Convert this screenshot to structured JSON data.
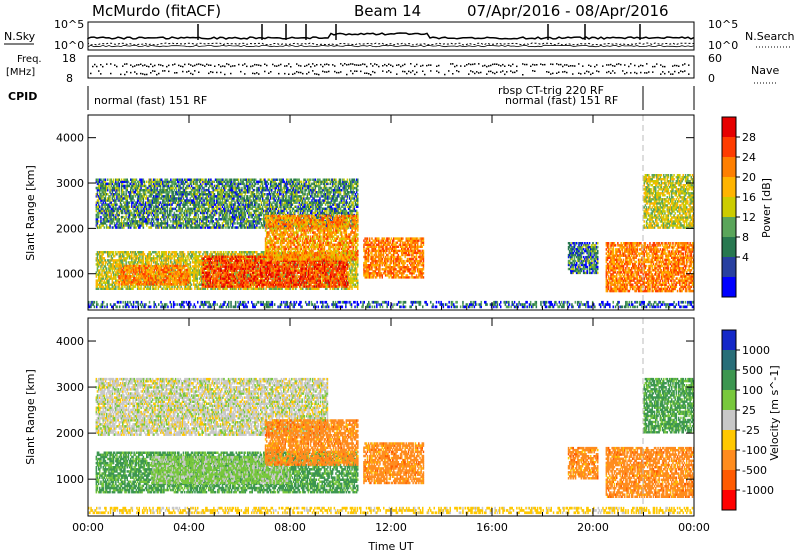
{
  "header": {
    "station": "McMurdo (fitACF)",
    "beam": "Beam 14",
    "dates": "07/Apr/2016 - 08/Apr/2016"
  },
  "top_panels": {
    "nsky_label": "N.Sky",
    "nsearch_label": "N.Search",
    "freq_label_top": "Freq.",
    "freq_label_units": "[MHz]",
    "nave_label": "Nave",
    "cpid_label": "CPID",
    "nsky_ticks": [
      "10^5",
      "10^0"
    ],
    "nsearch_ticks": [
      "10^5",
      "10^0"
    ],
    "freq_ticks": [
      "18",
      "8"
    ],
    "nave_ticks": [
      "60",
      "0"
    ],
    "cpid_entries": [
      "normal (fast) 151 RF",
      "rbsp CT-trig 220 RF",
      "normal (fast) 151 RF"
    ]
  },
  "colorbars": {
    "power": {
      "label": "Power [dB]",
      "ticks": [
        "28",
        "24",
        "20",
        "16",
        "12",
        "8",
        "4"
      ],
      "colors": [
        "#e60000",
        "#ff3c00",
        "#ff7f00",
        "#ffb400",
        "#cccc00",
        "#5aa55a",
        "#287850",
        "#2840a0",
        "#0000ff"
      ]
    },
    "velocity": {
      "label": "Velocity [m s^-1]",
      "ticks": [
        "1000",
        "500",
        "100",
        "25",
        "-25",
        "-100",
        "-500",
        "-1000"
      ],
      "colors": [
        "#1428c8",
        "#286e78",
        "#3c9650",
        "#78c83c",
        "#c8c8c8",
        "#ffc800",
        "#ff8c1e",
        "#ff5a00",
        "#ff0000"
      ]
    }
  },
  "chart_data": [
    {
      "type": "heatmap",
      "panel": "power",
      "xlabel": "",
      "ylabel": "Slant Range [km]",
      "ylim": [
        200,
        4500
      ],
      "yticks": [
        1000,
        2000,
        3000,
        4000
      ],
      "xlim_hours": [
        0,
        24
      ],
      "xtick_labels": [
        "00:00",
        "04:00",
        "08:00",
        "12:00",
        "16:00",
        "20:00",
        "00:00"
      ],
      "regions": [
        {
          "t0": 0.3,
          "t1": 10.7,
          "r0": 650,
          "r1": 1500,
          "value": 14
        },
        {
          "t0": 4.5,
          "t1": 10.3,
          "r0": 700,
          "r1": 1400,
          "value": 26
        },
        {
          "t0": 1.2,
          "t1": 4.0,
          "r0": 750,
          "r1": 1200,
          "value": 22
        },
        {
          "t0": 0.3,
          "t1": 10.7,
          "r0": 2000,
          "r1": 3100,
          "value": 8
        },
        {
          "t0": 7.0,
          "t1": 10.7,
          "r0": 1300,
          "r1": 2300,
          "value": 20
        },
        {
          "t0": 10.9,
          "t1": 13.3,
          "r0": 900,
          "r1": 1800,
          "value": 22
        },
        {
          "t0": 19.0,
          "t1": 20.2,
          "r0": 1000,
          "r1": 1700,
          "value": 7
        },
        {
          "t0": 20.5,
          "t1": 24.0,
          "r0": 600,
          "r1": 1700,
          "value": 22
        },
        {
          "t0": 22.0,
          "t1": 24.0,
          "r0": 2000,
          "r1": 3200,
          "value": 14
        },
        {
          "t0": 0.0,
          "t1": 24.0,
          "r0": 250,
          "r1": 400,
          "value": 5
        }
      ]
    },
    {
      "type": "heatmap",
      "panel": "velocity",
      "xlabel": "Time UT",
      "ylabel": "Slant Range [km]",
      "ylim": [
        200,
        4500
      ],
      "yticks": [
        1000,
        2000,
        3000,
        4000
      ],
      "xlim_hours": [
        0,
        24
      ],
      "xtick_labels": [
        "00:00",
        "04:00",
        "08:00",
        "12:00",
        "16:00",
        "20:00",
        "00:00"
      ],
      "regions": [
        {
          "t0": 0.3,
          "t1": 10.7,
          "r0": 700,
          "r1": 1600,
          "value": 150
        },
        {
          "t0": 2.5,
          "t1": 8.0,
          "r0": 900,
          "r1": 1500,
          "value": 40
        },
        {
          "t0": 0.3,
          "t1": 9.5,
          "r0": 1950,
          "r1": 3200,
          "value": 0
        },
        {
          "t0": 7.0,
          "t1": 10.7,
          "r0": 1300,
          "r1": 2300,
          "value": -300
        },
        {
          "t0": 10.9,
          "t1": 13.3,
          "r0": 900,
          "r1": 1800,
          "value": -300
        },
        {
          "t0": 19.0,
          "t1": 20.2,
          "r0": 1000,
          "r1": 1700,
          "value": -300
        },
        {
          "t0": 20.5,
          "t1": 24.0,
          "r0": 600,
          "r1": 1700,
          "value": -300
        },
        {
          "t0": 22.0,
          "t1": 24.0,
          "r0": 2000,
          "r1": 3200,
          "value": 150
        },
        {
          "t0": 0.0,
          "t1": 24.0,
          "r0": 250,
          "r1": 400,
          "value": -50
        }
      ]
    }
  ]
}
